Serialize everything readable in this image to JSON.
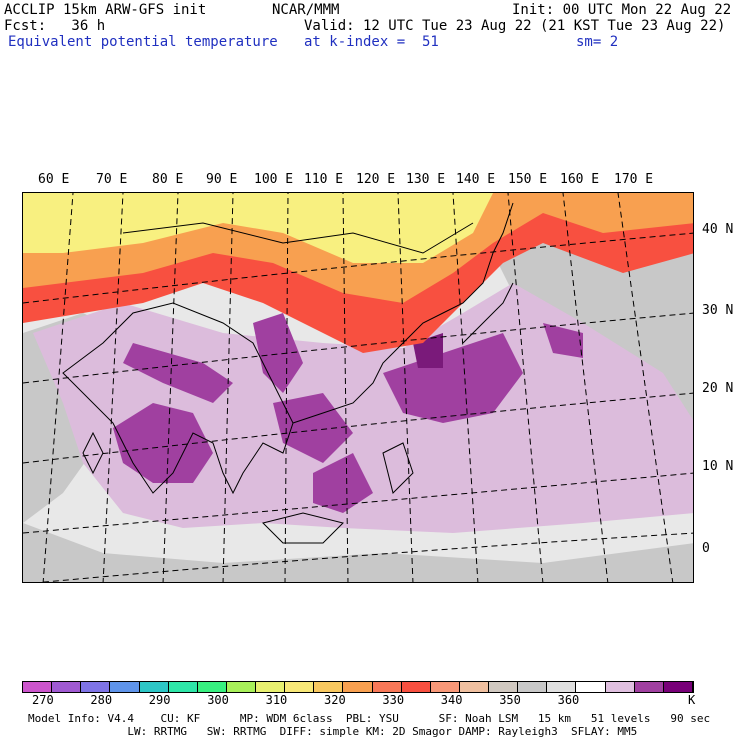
{
  "header": {
    "model_line": "ACCLIP 15km ARW-GFS init",
    "org": "NCAR/MMM",
    "init": "Init: 00 UTC Mon 22 Aug 22",
    "fcst": "Fcst:   36 h",
    "valid": "Valid: 12 UTC Tue 23 Aug 22 (21 KST Tue 23 Aug 22)",
    "field": "Equivalent potential temperature",
    "level": "at k-index =  51",
    "smooth": "sm= 2"
  },
  "longitude_labels": [
    "60 E",
    "70 E",
    "80 E",
    "90 E",
    "100 E",
    "110 E",
    "120 E",
    "130 E",
    "140 E",
    "150 E",
    "160 E",
    "170 E"
  ],
  "latitude_labels": [
    "40 N",
    "30 N",
    "20 N",
    "10 N",
    "0"
  ],
  "colorbar": {
    "unit": "K",
    "colors": [
      "#cc55cc",
      "#a05ad2",
      "#7f74e6",
      "#5f94ea",
      "#2dc6c6",
      "#2ee6a8",
      "#38f080",
      "#a8f05a",
      "#e8f070",
      "#f8e878",
      "#f8c860",
      "#f8a050",
      "#f87858",
      "#f85040",
      "#f89878",
      "#f0c0a0",
      "#d0c8c0",
      "#c8c8c8",
      "#e0e0e0",
      "#ffffff",
      "#e0c0e0",
      "#a040a0",
      "#780078"
    ],
    "labels": [
      "270",
      "280",
      "290",
      "300",
      "310",
      "320",
      "330",
      "340",
      "350",
      "360"
    ]
  },
  "footer": {
    "line1": "Model Info: V4.4    CU: KF      MP: WDM 6class  PBL: YSU      SF: Noah LSM   15 km   51 levels   90 sec",
    "line2": "               LW: RRTMG   SW: RRTMG  DIFF: simple KM: 2D Smagor DAMP: Rayleigh3  SFLAY: MM5"
  },
  "map_colors": {
    "background": "#e8e8e8",
    "gray": "#c8c8c8",
    "light_purple": "#dcbcdc",
    "purple": "#a040a0",
    "dark_purple": "#7a1a7a",
    "yellow": "#f8f080",
    "orange": "#f8a050",
    "red": "#f85040",
    "salmon": "#f89878"
  }
}
